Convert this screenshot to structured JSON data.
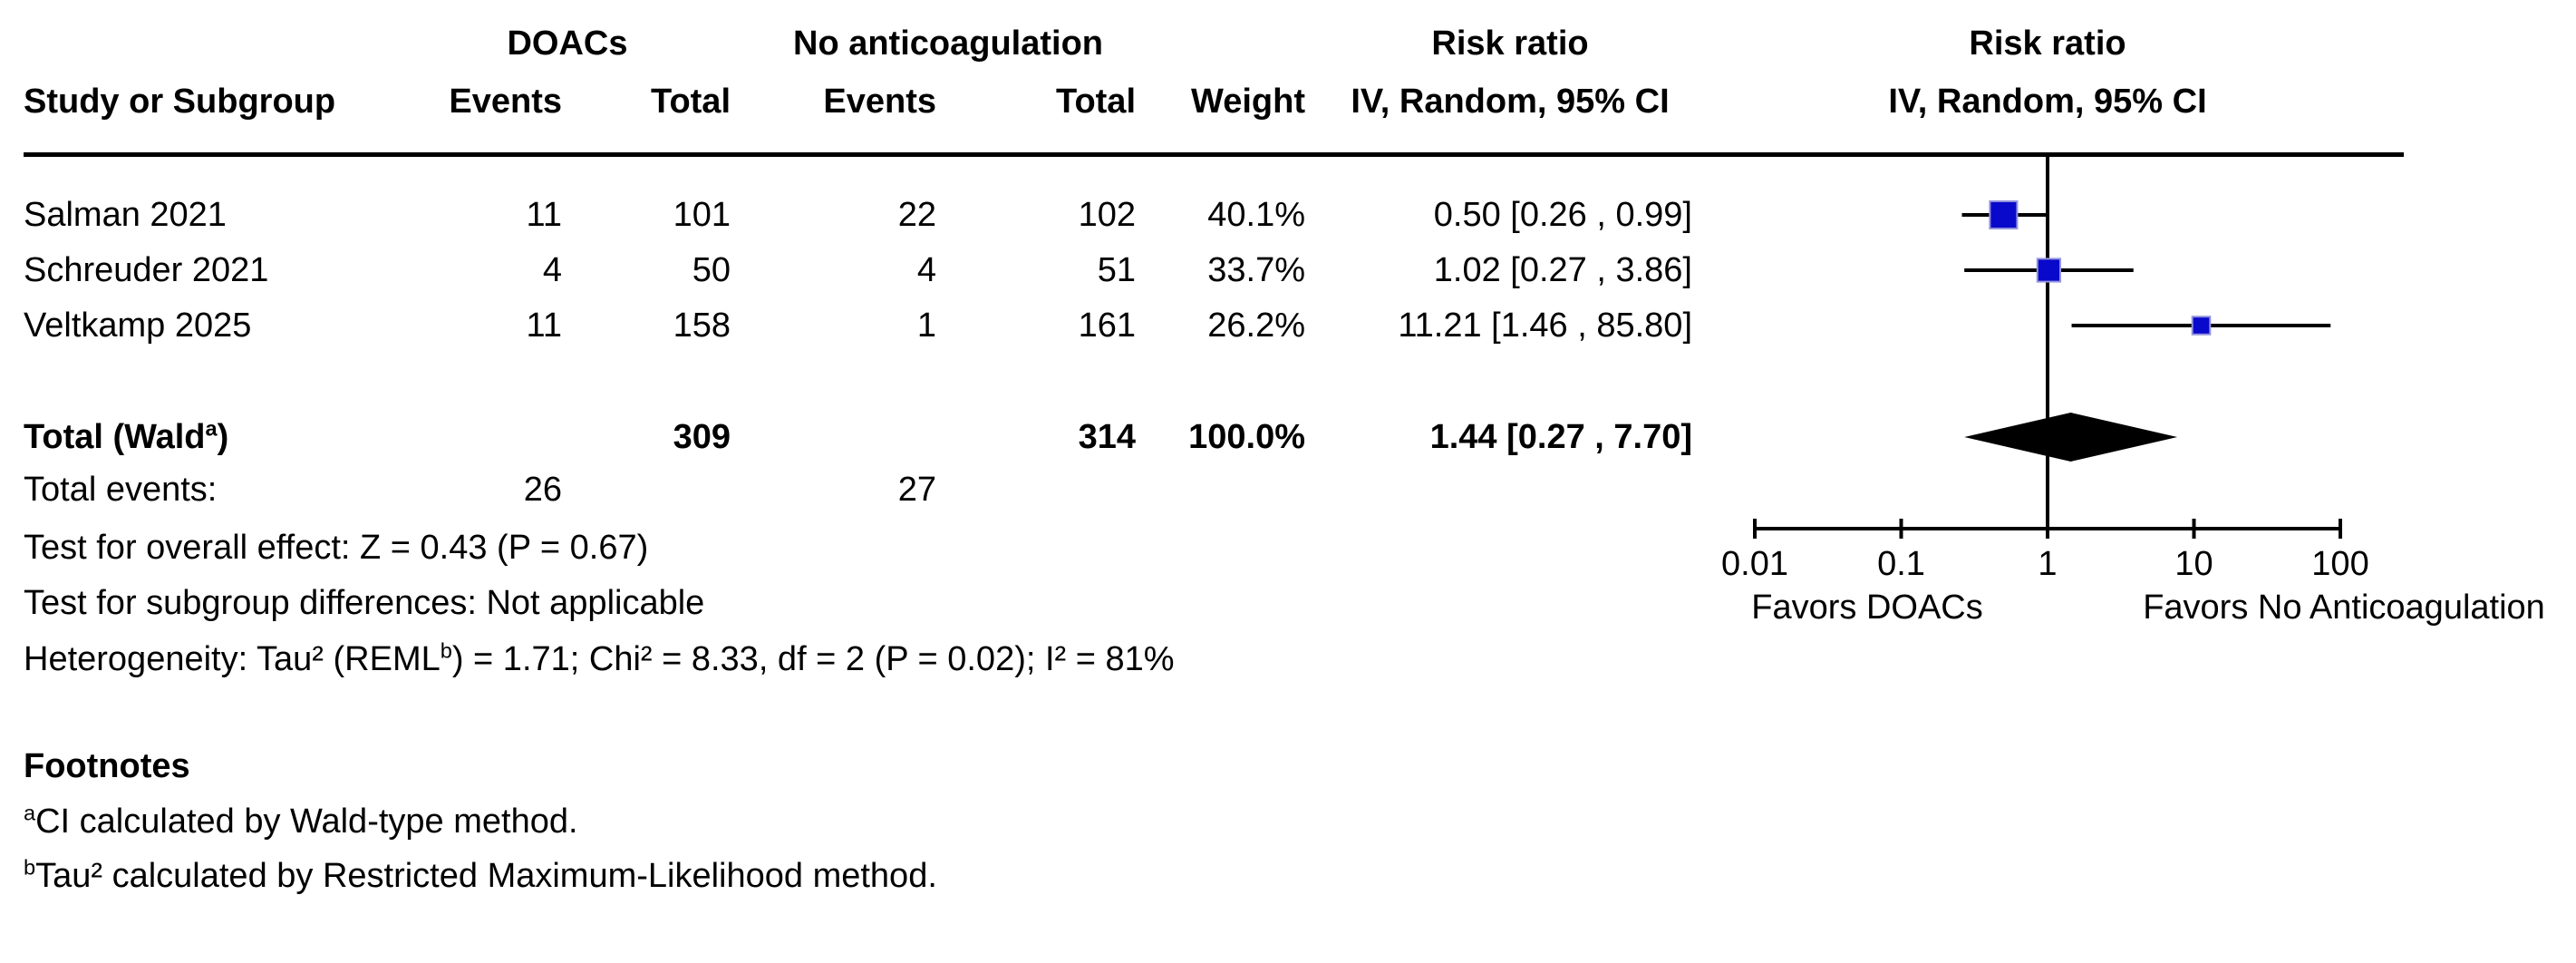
{
  "table": {
    "group_headers": {
      "doacs": "DOACs",
      "no_anticoagulation": "No anticoagulation",
      "risk_ratio_text": "Risk ratio",
      "risk_ratio_plot": "Risk ratio"
    },
    "col_headers": {
      "study": "Study or Subgroup",
      "events_1": "Events",
      "total_1": "Total",
      "events_2": "Events",
      "total_2": "Total",
      "weight": "Weight",
      "ci_text": "IV, Random, 95% CI",
      "ci_plot": "IV, Random, 95% CI"
    },
    "studies": [
      {
        "name": "Salman 2021",
        "events_1": "11",
        "total_1": "101",
        "events_2": "22",
        "total_2": "102",
        "weight": "40.1%",
        "rr_ci": "0.50 [0.26 , 0.99]"
      },
      {
        "name": "Schreuder 2021",
        "events_1": "4",
        "total_1": "50",
        "events_2": "4",
        "total_2": "51",
        "weight": "33.7%",
        "rr_ci": "1.02 [0.27 , 3.86]"
      },
      {
        "name": "Veltkamp 2025",
        "events_1": "11",
        "total_1": "158",
        "events_2": "1",
        "total_2": "161",
        "weight": "26.2%",
        "rr_ci": "11.21 [1.46 , 85.80]"
      }
    ],
    "total_row": {
      "label_prefix": "Total (Wald",
      "label_sup": "a",
      "label_suffix": ")",
      "total_1": "309",
      "total_2": "314",
      "weight": "100.0%",
      "rr_ci": "1.44 [0.27 , 7.70]"
    },
    "total_events": {
      "label": "Total events:",
      "events_1": "26",
      "events_2": "27"
    },
    "overall_effect": "Test for overall effect: Z = 0.43 (P = 0.67)",
    "subgroup_diff": "Test for subgroup differences: Not applicable",
    "heterogeneity_prefix": "Heterogeneity: Tau² (REML",
    "heterogeneity_sup": "b",
    "heterogeneity_suffix": ") = 1.71; Chi² = 8.33, df = 2 (P = 0.02); I² = 81%"
  },
  "footnotes": {
    "heading": "Footnotes",
    "a_sup": "a",
    "a_text": "CI calculated by Wald-type method.",
    "b_sup": "b",
    "b_text": "Tau² calculated by Restricted Maximum-Likelihood method."
  },
  "chart_data": {
    "type": "forest",
    "effect_measure": "Risk ratio",
    "model": "IV, Random, 95% CI",
    "x_scale": "log10",
    "xlim": [
      0.01,
      100
    ],
    "x_ticks": [
      0.01,
      0.1,
      1,
      10,
      100
    ],
    "x_tick_labels": [
      "0.01",
      "0.1",
      "1",
      "10",
      "100"
    ],
    "null_line": 1,
    "favors_left": "Favors DOACs",
    "favors_right": "Favors No Anticoagulation",
    "studies": [
      {
        "name": "Salman 2021",
        "rr": 0.5,
        "ci_low": 0.26,
        "ci_high": 0.99,
        "weight_pct": 40.1
      },
      {
        "name": "Schreuder 2021",
        "rr": 1.02,
        "ci_low": 0.27,
        "ci_high": 3.86,
        "weight_pct": 33.7
      },
      {
        "name": "Veltkamp 2025",
        "rr": 11.21,
        "ci_low": 1.46,
        "ci_high": 85.8,
        "weight_pct": 26.2
      }
    ],
    "total": {
      "rr": 1.44,
      "ci_low": 0.27,
      "ci_high": 7.7
    },
    "colors": {
      "marker_fill": "#0909cb",
      "marker_border": "#9595dd",
      "line": "#000000",
      "diamond": "#000000"
    }
  }
}
